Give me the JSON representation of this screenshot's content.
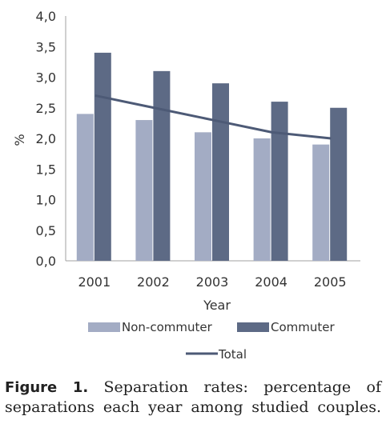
{
  "chart_data": {
    "type": "bar",
    "categories": [
      "2001",
      "2002",
      "2003",
      "2004",
      "2005"
    ],
    "series": [
      {
        "name": "Non-commuter",
        "kind": "bar",
        "color": "#a3acc4",
        "values": [
          2.4,
          2.3,
          2.1,
          2.0,
          1.9
        ]
      },
      {
        "name": "Commuter",
        "kind": "bar",
        "color": "#5d6a85",
        "values": [
          3.4,
          3.1,
          2.9,
          2.6,
          2.5
        ]
      },
      {
        "name": "Total",
        "kind": "line",
        "color": "#4d5a76",
        "values": [
          2.7,
          2.5,
          2.3,
          2.1,
          2.0
        ]
      }
    ],
    "xlabel": "Year",
    "ylabel": "%",
    "ylim": [
      0,
      4.0
    ],
    "yticks": [
      "0,0",
      "0,5",
      "1,0",
      "1,5",
      "2,0",
      "2,5",
      "3,0",
      "3,5",
      "4,0"
    ],
    "grid": false,
    "legend_position": "bottom"
  },
  "caption": {
    "label": "Figure 1.",
    "text": "Separation rates: percentage of separations each year among studied couples."
  }
}
